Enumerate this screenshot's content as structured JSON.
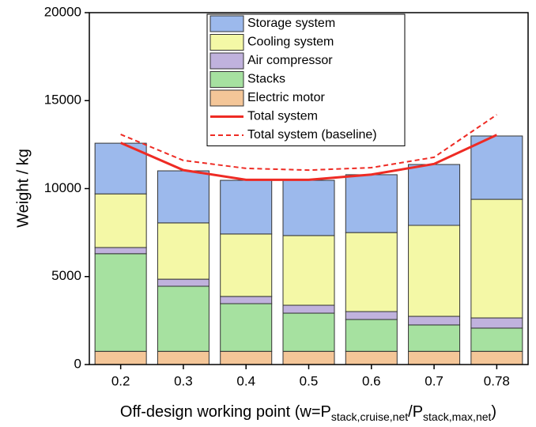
{
  "chart_data": {
    "type": "bar",
    "stacked": true,
    "y_label": "Weight / kg",
    "x_label": [
      "Off-design working point (w=P",
      "stack,cruise,net",
      "/P",
      "stack,max,net",
      ")"
    ],
    "categories": [
      "0.2",
      "0.3",
      "0.4",
      "0.5",
      "0.6",
      "0.7",
      "0.78"
    ],
    "ylim": [
      0,
      20000
    ],
    "yticks": [
      0,
      5000,
      10000,
      15000,
      20000
    ],
    "legend": "top",
    "series": [
      {
        "name": "Storage system",
        "color": "#9cb9ec",
        "values": [
          2880,
          2960,
          3050,
          3140,
          3290,
          3460,
          3600
        ]
      },
      {
        "name": "Cooling system",
        "color": "#f4f8a6",
        "values": [
          3050,
          3200,
          3550,
          3960,
          4490,
          5170,
          6740
        ]
      },
      {
        "name": "Air compressor",
        "color": "#c0b2dd",
        "values": [
          350,
          400,
          410,
          450,
          450,
          490,
          580
        ]
      },
      {
        "name": "Stacks",
        "color": "#a6e1a0",
        "values": [
          5550,
          3700,
          2710,
          2170,
          1810,
          1500,
          1320
        ]
      },
      {
        "name": "Electric motor",
        "color": "#f4c698",
        "values": [
          750,
          750,
          750,
          750,
          750,
          750,
          750
        ]
      },
      {
        "name": "Total system",
        "type": "line",
        "color": "#ee2b24",
        "dash": "solid",
        "values": [
          12600,
          11050,
          10500,
          10500,
          10800,
          11400,
          13050
        ]
      },
      {
        "name": "Total system (baseline)",
        "type": "line",
        "color": "#ee2b24",
        "dash": "dashed",
        "values": [
          13080,
          11600,
          11150,
          11050,
          11190,
          11780,
          14200
        ]
      }
    ]
  }
}
